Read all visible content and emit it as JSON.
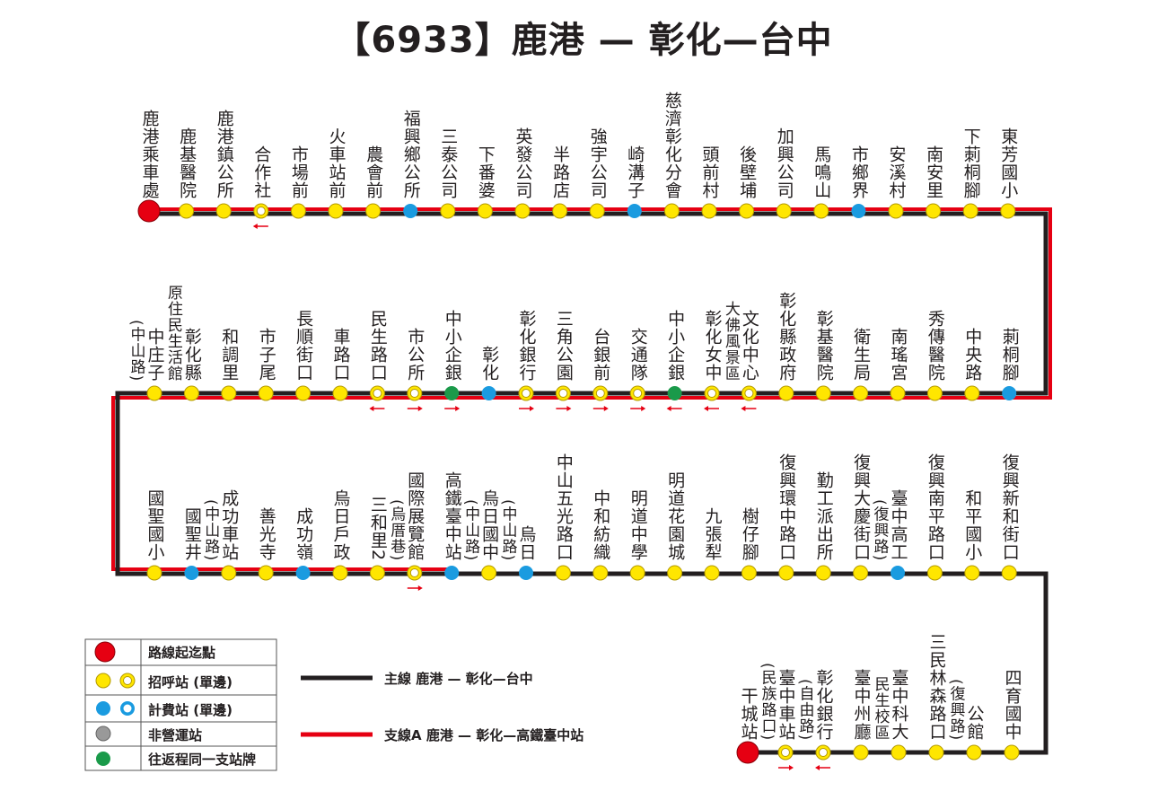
{
  "title": "【6933】鹿港 — 彰化—台中",
  "rows": [
    {
      "stations": [
        {
          "name": [
            "鹿港乘車處"
          ],
          "marker": "terminal"
        },
        {
          "name": [
            "鹿基醫院"
          ],
          "marker": "stop"
        },
        {
          "name": [
            "鹿港鎮公所"
          ],
          "marker": "stop"
        },
        {
          "name": [
            "合作社"
          ],
          "marker": "stop-single",
          "arrow": "left"
        },
        {
          "name": [
            "市場前"
          ],
          "marker": "stop"
        },
        {
          "name": [
            "火車站前"
          ],
          "marker": "stop"
        },
        {
          "name": [
            "農會前"
          ],
          "marker": "stop"
        },
        {
          "name": [
            "福興鄉公所"
          ],
          "marker": "fare"
        },
        {
          "name": [
            "三泰公司"
          ],
          "marker": "stop"
        },
        {
          "name": [
            "下番婆"
          ],
          "marker": "stop"
        },
        {
          "name": [
            "英發公司"
          ],
          "marker": "stop"
        },
        {
          "name": [
            "半路店"
          ],
          "marker": "stop"
        },
        {
          "name": [
            "強宇公司"
          ],
          "marker": "stop"
        },
        {
          "name": [
            "崎溝子"
          ],
          "marker": "fare"
        },
        {
          "name": [
            "慈濟彰化分會"
          ],
          "marker": "stop"
        },
        {
          "name": [
            "頭前村"
          ],
          "marker": "stop"
        },
        {
          "name": [
            "後壁埔"
          ],
          "marker": "stop"
        },
        {
          "name": [
            "加興公司"
          ],
          "marker": "stop"
        },
        {
          "name": [
            "馬鳴山"
          ],
          "marker": "stop"
        },
        {
          "name": [
            "市鄉界"
          ],
          "marker": "fare"
        },
        {
          "name": [
            "安溪村"
          ],
          "marker": "stop"
        },
        {
          "name": [
            "南安里"
          ],
          "marker": "stop"
        },
        {
          "name": [
            "下莿桐腳"
          ],
          "marker": "stop"
        },
        {
          "name": [
            "東芳國小"
          ],
          "marker": "stop"
        }
      ]
    },
    {
      "stations": [
        {
          "name": [
            "中庄子",
            "(中山路)"
          ],
          "marker": "stop"
        },
        {
          "name": [
            "彰化縣",
            "原住民生活館"
          ],
          "marker": "stop"
        },
        {
          "name": [
            "和調里"
          ],
          "marker": "stop"
        },
        {
          "name": [
            "市子尾"
          ],
          "marker": "stop"
        },
        {
          "name": [
            "長順街口"
          ],
          "marker": "stop"
        },
        {
          "name": [
            "車路口"
          ],
          "marker": "stop"
        },
        {
          "name": [
            "民生路口"
          ],
          "marker": "stop-single",
          "arrow": "left"
        },
        {
          "name": [
            "市公所"
          ],
          "marker": "stop-single",
          "arrow": "right"
        },
        {
          "name": [
            "中小企銀"
          ],
          "marker": "same-sign",
          "arrow": "right"
        },
        {
          "name": [
            "彰化"
          ],
          "marker": "fare"
        },
        {
          "name": [
            "彰化銀行"
          ],
          "marker": "stop-single",
          "arrow": "right"
        },
        {
          "name": [
            "三角公園"
          ],
          "marker": "stop-single",
          "arrow": "right"
        },
        {
          "name": [
            "台銀前"
          ],
          "marker": "stop-single",
          "arrow": "right"
        },
        {
          "name": [
            "交通隊"
          ],
          "marker": "stop-single",
          "arrow": "right"
        },
        {
          "name": [
            "中小企銀"
          ],
          "marker": "same-sign",
          "arrow": "left"
        },
        {
          "name": [
            "彰化女中"
          ],
          "marker": "stop-single",
          "arrow": "left"
        },
        {
          "name": [
            "文化中心",
            "大佛風景區"
          ],
          "marker": "stop-single",
          "arrow": "left"
        },
        {
          "name": [
            "彰化縣政府"
          ],
          "marker": "stop"
        },
        {
          "name": [
            "彰基醫院"
          ],
          "marker": "stop"
        },
        {
          "name": [
            "衛生局"
          ],
          "marker": "stop"
        },
        {
          "name": [
            "南瑤宮"
          ],
          "marker": "stop"
        },
        {
          "name": [
            "秀傳醫院"
          ],
          "marker": "stop"
        },
        {
          "name": [
            "中央路"
          ],
          "marker": "stop"
        },
        {
          "name": [
            "莿桐腳"
          ],
          "marker": "fare"
        }
      ]
    },
    {
      "stations": [
        {
          "name": [
            "國聖國小"
          ],
          "marker": "stop"
        },
        {
          "name": [
            "國聖井"
          ],
          "marker": "fare"
        },
        {
          "name": [
            "成功車站",
            "(中山路)"
          ],
          "marker": "stop"
        },
        {
          "name": [
            "善光寺"
          ],
          "marker": "stop"
        },
        {
          "name": [
            "成功嶺"
          ],
          "marker": "fare"
        },
        {
          "name": [
            "烏日戶政"
          ],
          "marker": "stop"
        },
        {
          "name": [
            "三和里2"
          ],
          "marker": "stop"
        },
        {
          "name": [
            "國際展覽館",
            "(烏厝巷)"
          ],
          "marker": "stop-single",
          "arrow": "right"
        },
        {
          "name": [
            "高鐵臺中站"
          ],
          "marker": "fare"
        },
        {
          "name": [
            "烏日國中",
            "(中山路)"
          ],
          "marker": "stop"
        },
        {
          "name": [
            "烏日",
            "(中山路)"
          ],
          "marker": "fare"
        },
        {
          "name": [
            "中山五光路口"
          ],
          "marker": "stop"
        },
        {
          "name": [
            "中和紡織"
          ],
          "marker": "stop"
        },
        {
          "name": [
            "明道中學"
          ],
          "marker": "stop"
        },
        {
          "name": [
            "明道花園城"
          ],
          "marker": "stop"
        },
        {
          "name": [
            "九張犁"
          ],
          "marker": "stop"
        },
        {
          "name": [
            "樹仔腳"
          ],
          "marker": "stop"
        },
        {
          "name": [
            "復興環中路口"
          ],
          "marker": "stop"
        },
        {
          "name": [
            "勤工派出所"
          ],
          "marker": "stop"
        },
        {
          "name": [
            "復興大慶街口"
          ],
          "marker": "stop"
        },
        {
          "name": [
            "臺中高工",
            "(復興路)"
          ],
          "marker": "fare"
        },
        {
          "name": [
            "復興南平路口"
          ],
          "marker": "stop"
        },
        {
          "name": [
            "和平國小"
          ],
          "marker": "stop"
        },
        {
          "name": [
            "復興新和街口"
          ],
          "marker": "stop"
        }
      ]
    },
    {
      "stations": [
        {
          "name": [
            "干城站"
          ],
          "marker": "terminal"
        },
        {
          "name": [
            "臺中車站",
            "(民族路口)"
          ],
          "marker": "stop-single",
          "arrow": "right"
        },
        {
          "name": [
            "彰化銀行",
            "(自由路)"
          ],
          "marker": "stop-single",
          "arrow": "left"
        },
        {
          "name": [
            "臺中州廳"
          ],
          "marker": "stop"
        },
        {
          "name": [
            "臺中科大",
            "民生校區"
          ],
          "marker": "stop"
        },
        {
          "name": [
            "三民林森路口"
          ],
          "marker": "stop"
        },
        {
          "name": [
            "公館",
            "(復興路)"
          ],
          "marker": "stop"
        },
        {
          "name": [
            "四育國中"
          ],
          "marker": "stop"
        }
      ]
    }
  ],
  "legend": {
    "items": [
      "路線起迄點",
      "招呼站 (單邊)",
      "計費站 (單邊)",
      "非營運站",
      "往返程同一支站牌"
    ],
    "lines": [
      "主線 鹿港 — 彰化—台中",
      "支線A 鹿港 — 彰化—高鐵臺中站"
    ]
  }
}
